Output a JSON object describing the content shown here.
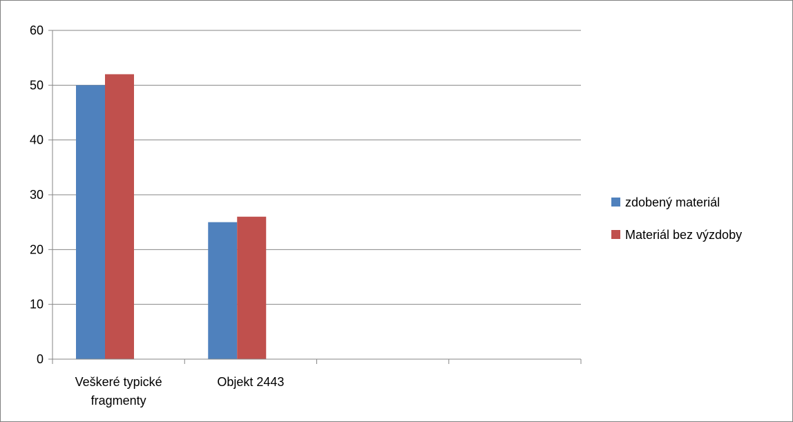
{
  "chart_data": {
    "type": "bar",
    "categories": [
      [
        "Veškeré typické",
        "fragmenty"
      ],
      [
        "Objekt 2443"
      ],
      [
        ""
      ],
      [
        ""
      ]
    ],
    "series": [
      {
        "name": "zdobený materiál",
        "color": "#4f81bd",
        "values": [
          50,
          25,
          null,
          null
        ]
      },
      {
        "name": "Materiál bez výzdoby",
        "color": "#c0504d",
        "values": [
          52,
          26,
          null,
          null
        ]
      }
    ],
    "yticks": [
      0,
      10,
      20,
      30,
      40,
      50,
      60
    ],
    "ylim": [
      0,
      60
    ],
    "grid": true,
    "legend_position": "right",
    "title": "",
    "xlabel": "",
    "ylabel": ""
  }
}
